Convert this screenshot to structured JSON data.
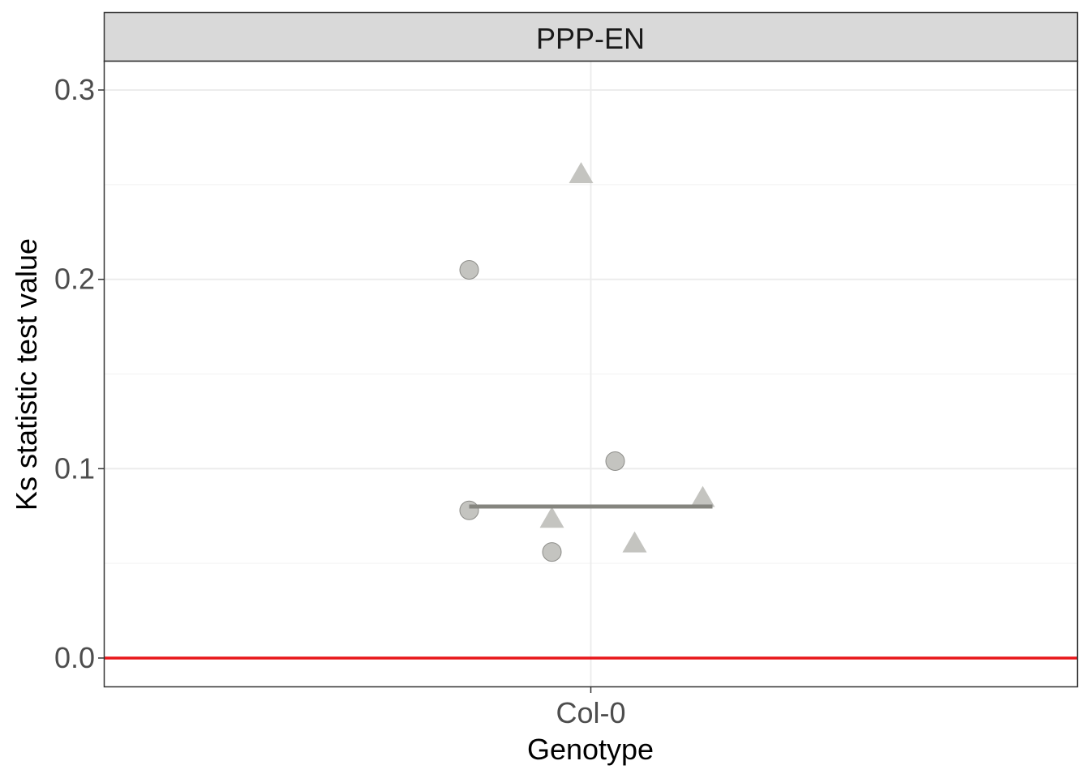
{
  "chart_data": {
    "type": "scatter",
    "facet_label": "PPP-EN",
    "xlabel": "Genotype",
    "ylabel": "Ks statistic test value",
    "categories": [
      "Col-0"
    ],
    "ylim": [
      -0.015,
      0.315
    ],
    "y_ticks": [
      {
        "value": 0.0,
        "label": "0.0"
      },
      {
        "value": 0.1,
        "label": "0.1"
      },
      {
        "value": 0.2,
        "label": "0.2"
      },
      {
        "value": 0.3,
        "label": "0.3"
      }
    ],
    "y_minor_ticks": [
      0.05,
      0.15,
      0.25
    ],
    "grid": true,
    "series": [
      {
        "shape": "circle",
        "color": "#c4c4c0",
        "points": [
          {
            "category": "Col-0",
            "jitter": -0.25,
            "y": 0.205
          },
          {
            "category": "Col-0",
            "jitter": -0.25,
            "y": 0.078
          },
          {
            "category": "Col-0",
            "jitter": -0.08,
            "y": 0.056
          },
          {
            "category": "Col-0",
            "jitter": 0.05,
            "y": 0.104
          }
        ]
      },
      {
        "shape": "triangle",
        "color": "#c4c4c0",
        "points": [
          {
            "category": "Col-0",
            "jitter": -0.02,
            "y": 0.255
          },
          {
            "category": "Col-0",
            "jitter": -0.08,
            "y": 0.073
          },
          {
            "category": "Col-0",
            "jitter": 0.09,
            "y": 0.06
          },
          {
            "category": "Col-0",
            "jitter": 0.23,
            "y": 0.084
          }
        ]
      }
    ],
    "median_line": {
      "category": "Col-0",
      "y": 0.08,
      "x_from": -0.25,
      "x_to": 0.25,
      "color": "#85857f"
    },
    "reference_line": {
      "y": 0.0,
      "color": "#e8161a"
    }
  }
}
